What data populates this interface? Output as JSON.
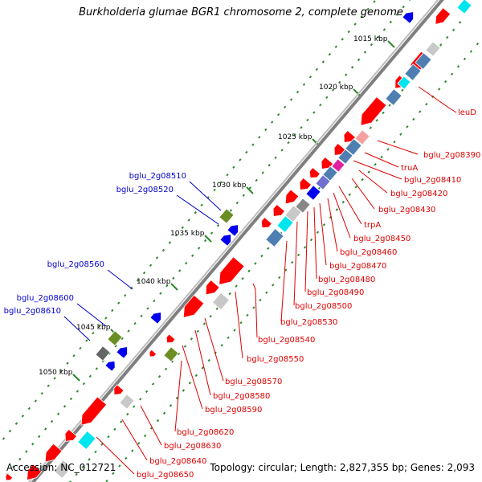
{
  "title": "Burkholderia glumae BGR1 chromosome 2, complete genome",
  "footer": {
    "accession": "Accession: NC_012721",
    "summary": "Topology: circular; Length: 2,827,355 bp; Genes: 2,093"
  },
  "colors": {
    "backbone": "#7f7f7f",
    "tick": "#2a8a2a",
    "forward_gene": "#ff0000",
    "reverse_gene": "#4f7fb2",
    "label_forward": "#0000cc",
    "label_reverse": "#e00000"
  },
  "scale_labels": [
    "1015 kbp",
    "1020 kbp",
    "1025 kbp",
    "1030 kbp",
    "1035 kbp",
    "1040 kbp",
    "1045 kbp",
    "1050 kbp"
  ],
  "left_labels": [
    "bglu_2g08510",
    "bglu_2g08520",
    "bglu_2g08560",
    "bglu_2g08600",
    "bglu_2g08610"
  ],
  "right_labels": [
    "leuD",
    "bglu_2g08390",
    "truA",
    "bglu_2g08410",
    "bglu_2g08420",
    "bglu_2g08430",
    "trpA",
    "bglu_2g08450",
    "bglu_2g08460",
    "bglu_2g08470",
    "bglu_2g08480",
    "bglu_2g08490",
    "bglu_2g08500",
    "bglu_2g08530",
    "bglu_2g08540",
    "bglu_2g08550",
    "bglu_2g08570",
    "bglu_2g08580",
    "bglu_2g08590",
    "bglu_2g08620",
    "bglu_2g08630",
    "bglu_2g08640",
    "bglu_2g08650"
  ]
}
